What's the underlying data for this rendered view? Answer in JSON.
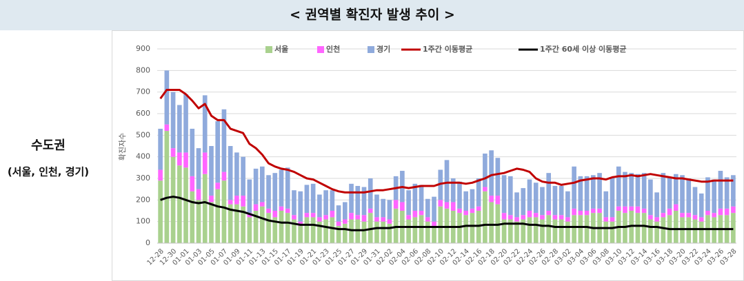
{
  "header": {
    "title": "< 권역별 확진자 발생 추이 >"
  },
  "side": {
    "title": "수도권",
    "subtitle": "(서울, 인천, 경기)"
  },
  "chart_data": {
    "type": "bar",
    "stacked": true,
    "y_label": "확진자수",
    "grid": true,
    "legend": "top",
    "ylim": [
      0,
      900
    ],
    "yticks": [
      0,
      100,
      200,
      300,
      400,
      500,
      600,
      700,
      800,
      900
    ],
    "categories": [
      "12-28",
      null,
      "12-30",
      null,
      "01-01",
      null,
      "01-03",
      null,
      "01-05",
      null,
      "01-07",
      null,
      "01-09",
      null,
      "01-11",
      null,
      "01-13",
      null,
      "01-15",
      null,
      "01-17",
      null,
      "01-19",
      null,
      "01-21",
      null,
      "01-23",
      null,
      "01-25",
      null,
      "01-27",
      null,
      "01-29",
      null,
      "01-31",
      null,
      "02-02",
      null,
      "02-04",
      null,
      "02-06",
      null,
      "02-08",
      null,
      "02-10",
      null,
      "02-12",
      null,
      "02-14",
      null,
      "02-16",
      null,
      "02-18",
      null,
      "02-20",
      null,
      "02-22",
      null,
      "02-24",
      null,
      "02-26",
      null,
      "02-28",
      null,
      "03-02",
      null,
      "03-04",
      null,
      "03-06",
      null,
      "03-08",
      null,
      "03-10",
      null,
      "03-12",
      null,
      "03-14",
      null,
      "03-16",
      null,
      "03-18",
      null,
      "03-20",
      null,
      "03-22",
      null,
      "03-24",
      null,
      "03-26",
      null,
      "03-28"
    ],
    "series": [
      {
        "name": "서울",
        "type": "bar",
        "color": "#a9d18e",
        "values": [
          290,
          520,
          400,
          360,
          350,
          240,
          200,
          320,
          190,
          250,
          290,
          180,
          180,
          170,
          120,
          150,
          170,
          140,
          120,
          150,
          140,
          110,
          80,
          120,
          120,
          100,
          110,
          120,
          80,
          90,
          110,
          110,
          100,
          140,
          100,
          100,
          90,
          160,
          150,
          110,
          120,
          130,
          100,
          80,
          170,
          160,
          150,
          140,
          130,
          140,
          150,
          240,
          190,
          180,
          110,
          110,
          100,
          110,
          120,
          120,
          110,
          130,
          110,
          110,
          100,
          130,
          130,
          130,
          140,
          140,
          100,
          100,
          150,
          140,
          150,
          140,
          140,
          110,
          100,
          120,
          130,
          150,
          120,
          120,
          110,
          100,
          130,
          120,
          130,
          130,
          140
        ]
      },
      {
        "name": "인천",
        "type": "bar",
        "color": "#ff66ff",
        "values": [
          50,
          30,
          40,
          60,
          70,
          70,
          50,
          100,
          30,
          30,
          40,
          20,
          40,
          50,
          20,
          30,
          20,
          20,
          30,
          20,
          20,
          20,
          20,
          20,
          20,
          20,
          20,
          30,
          20,
          20,
          30,
          20,
          30,
          20,
          20,
          20,
          20,
          40,
          40,
          20,
          30,
          20,
          20,
          20,
          30,
          30,
          40,
          20,
          20,
          20,
          20,
          20,
          30,
          40,
          30,
          20,
          20,
          20,
          30,
          20,
          20,
          20,
          20,
          20,
          20,
          30,
          20,
          20,
          20,
          20,
          20,
          20,
          20,
          30,
          20,
          30,
          20,
          20,
          20,
          20,
          30,
          30,
          20,
          20,
          20,
          20,
          20,
          20,
          30,
          30,
          30
        ]
      },
      {
        "name": "경기",
        "type": "bar",
        "color": "#8faadc",
        "values": [
          190,
          250,
          260,
          220,
          270,
          220,
          190,
          265,
          230,
          285,
          290,
          250,
          200,
          180,
          155,
          165,
          165,
          155,
          175,
          170,
          190,
          115,
          140,
          130,
          135,
          105,
          115,
          95,
          75,
          80,
          135,
          135,
          130,
          140,
          105,
          85,
          90,
          110,
          145,
          115,
          125,
          120,
          85,
          115,
          140,
          195,
          110,
          125,
          90,
          90,
          130,
          155,
          210,
          175,
          175,
          180,
          115,
          125,
          145,
          140,
          130,
          175,
          135,
          135,
          120,
          195,
          160,
          160,
          155,
          165,
          120,
          185,
          185,
          160,
          155,
          150,
          165,
          165,
          115,
          185,
          145,
          140,
          175,
          160,
          130,
          110,
          155,
          155,
          175,
          145,
          145
        ]
      },
      {
        "name": "1주간 이동평균",
        "type": "line",
        "color": "#c00000",
        "values": [
          670,
          710,
          710,
          710,
          690,
          660,
          625,
          645,
          590,
          570,
          570,
          530,
          520,
          510,
          460,
          440,
          410,
          370,
          355,
          345,
          340,
          330,
          315,
          300,
          295,
          280,
          265,
          250,
          240,
          235,
          235,
          235,
          235,
          240,
          245,
          245,
          250,
          255,
          260,
          255,
          260,
          265,
          265,
          265,
          275,
          280,
          280,
          280,
          275,
          280,
          290,
          300,
          315,
          320,
          325,
          335,
          345,
          340,
          330,
          300,
          285,
          280,
          280,
          270,
          275,
          280,
          290,
          295,
          300,
          300,
          295,
          305,
          310,
          310,
          315,
          310,
          315,
          320,
          315,
          310,
          305,
          300,
          300,
          295,
          290,
          285,
          285,
          290,
          290,
          290,
          290
        ]
      },
      {
        "name": "1주간 60세 이상 이동평균",
        "type": "line",
        "color": "#000000",
        "values": [
          200,
          210,
          215,
          210,
          200,
          190,
          185,
          190,
          180,
          170,
          165,
          155,
          150,
          145,
          135,
          125,
          115,
          105,
          100,
          95,
          95,
          90,
          85,
          85,
          85,
          80,
          75,
          70,
          65,
          65,
          60,
          60,
          60,
          65,
          70,
          70,
          70,
          75,
          75,
          75,
          75,
          75,
          75,
          75,
          75,
          75,
          75,
          75,
          80,
          80,
          80,
          85,
          85,
          85,
          90,
          90,
          90,
          90,
          85,
          85,
          80,
          80,
          75,
          75,
          75,
          75,
          75,
          75,
          70,
          70,
          70,
          70,
          75,
          75,
          80,
          80,
          80,
          75,
          75,
          70,
          65,
          65,
          65,
          65,
          65,
          65,
          65,
          65,
          65,
          65,
          65
        ]
      }
    ]
  }
}
